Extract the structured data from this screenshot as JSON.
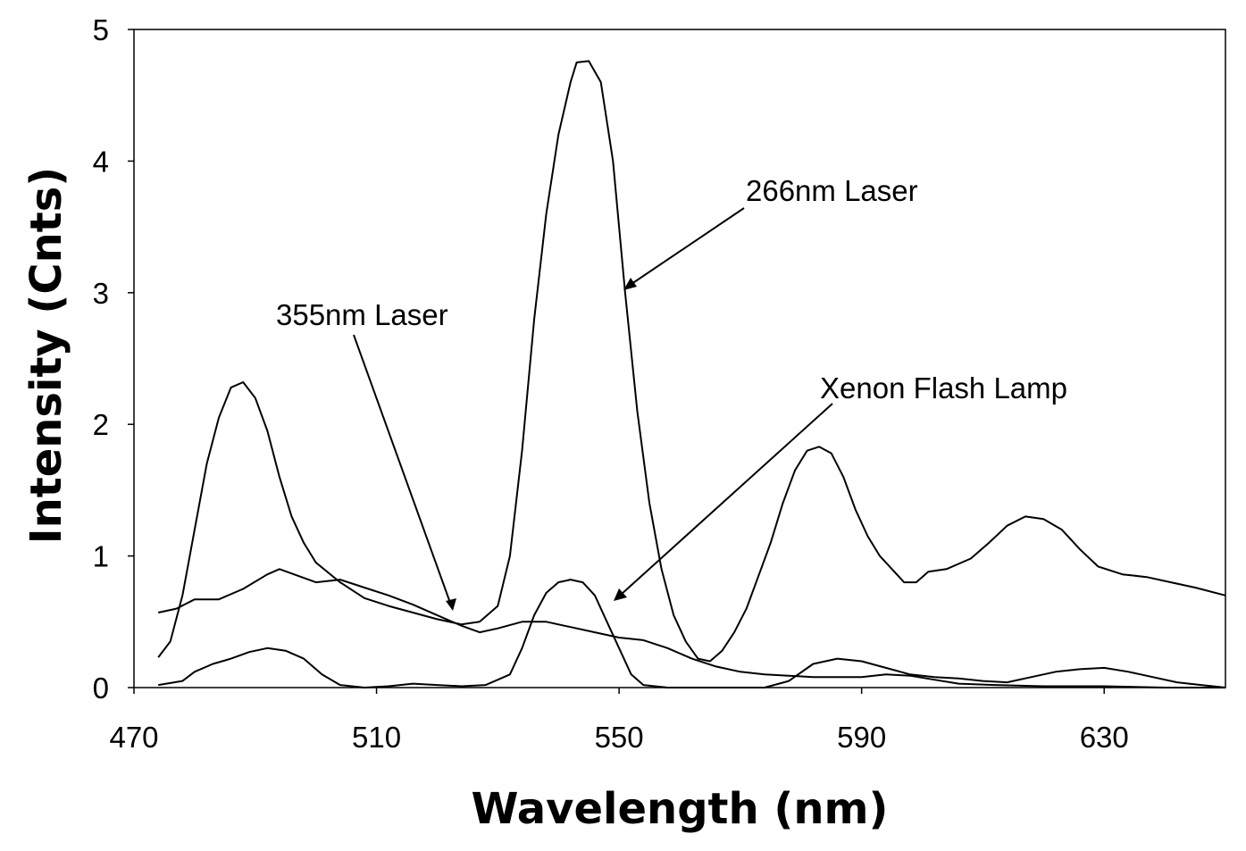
{
  "chart_data": {
    "type": "line",
    "xlabel": "Wavelength (nm)",
    "ylabel": "Intensity (Cnts)",
    "xlim": [
      470,
      650
    ],
    "ylim": [
      0,
      5
    ],
    "x_ticks": [
      470,
      510,
      550,
      590,
      630
    ],
    "y_ticks": [
      0,
      1,
      2,
      3,
      4,
      5
    ],
    "grid": false,
    "series": [
      {
        "id": "s266",
        "points": [
          [
            474,
            0.23
          ],
          [
            476,
            0.35
          ],
          [
            478,
            0.7
          ],
          [
            480,
            1.2
          ],
          [
            482,
            1.7
          ],
          [
            484,
            2.05
          ],
          [
            486,
            2.28
          ],
          [
            488,
            2.32
          ],
          [
            490,
            2.2
          ],
          [
            492,
            1.95
          ],
          [
            494,
            1.6
          ],
          [
            496,
            1.3
          ],
          [
            498,
            1.1
          ],
          [
            500,
            0.95
          ],
          [
            504,
            0.8
          ],
          [
            508,
            0.68
          ],
          [
            512,
            0.62
          ],
          [
            516,
            0.57
          ],
          [
            520,
            0.52
          ],
          [
            524,
            0.48
          ],
          [
            527,
            0.5
          ],
          [
            530,
            0.62
          ],
          [
            532,
            1.0
          ],
          [
            534,
            1.8
          ],
          [
            536,
            2.8
          ],
          [
            538,
            3.6
          ],
          [
            540,
            4.2
          ],
          [
            542,
            4.6
          ],
          [
            543,
            4.75
          ],
          [
            545,
            4.76
          ],
          [
            547,
            4.6
          ],
          [
            549,
            4.0
          ],
          [
            551,
            3.0
          ],
          [
            553,
            2.1
          ],
          [
            555,
            1.4
          ],
          [
            557,
            0.9
          ],
          [
            559,
            0.55
          ],
          [
            561,
            0.35
          ],
          [
            563,
            0.22
          ],
          [
            565,
            0.2
          ],
          [
            567,
            0.28
          ],
          [
            569,
            0.42
          ],
          [
            571,
            0.6
          ],
          [
            573,
            0.85
          ],
          [
            575,
            1.1
          ],
          [
            577,
            1.4
          ],
          [
            579,
            1.65
          ],
          [
            581,
            1.8
          ],
          [
            583,
            1.83
          ],
          [
            585,
            1.78
          ],
          [
            587,
            1.6
          ],
          [
            589,
            1.35
          ],
          [
            591,
            1.15
          ],
          [
            593,
            1.0
          ],
          [
            595,
            0.9
          ],
          [
            597,
            0.8
          ],
          [
            599,
            0.8
          ],
          [
            601,
            0.88
          ],
          [
            604,
            0.9
          ],
          [
            608,
            0.98
          ],
          [
            611,
            1.1
          ],
          [
            614,
            1.23
          ],
          [
            617,
            1.3
          ],
          [
            620,
            1.28
          ],
          [
            623,
            1.2
          ],
          [
            626,
            1.05
          ],
          [
            629,
            0.92
          ],
          [
            633,
            0.86
          ],
          [
            637,
            0.84
          ],
          [
            641,
            0.8
          ],
          [
            645,
            0.76
          ],
          [
            650,
            0.7
          ]
        ]
      },
      {
        "id": "s355",
        "points": [
          [
            474,
            0.57
          ],
          [
            477,
            0.6
          ],
          [
            480,
            0.67
          ],
          [
            484,
            0.67
          ],
          [
            488,
            0.75
          ],
          [
            492,
            0.86
          ],
          [
            494,
            0.9
          ],
          [
            497,
            0.85
          ],
          [
            500,
            0.8
          ],
          [
            504,
            0.82
          ],
          [
            508,
            0.76
          ],
          [
            512,
            0.7
          ],
          [
            516,
            0.63
          ],
          [
            520,
            0.55
          ],
          [
            524,
            0.47
          ],
          [
            527,
            0.42
          ],
          [
            530,
            0.45
          ],
          [
            534,
            0.5
          ],
          [
            538,
            0.5
          ],
          [
            542,
            0.46
          ],
          [
            546,
            0.42
          ],
          [
            550,
            0.38
          ],
          [
            554,
            0.36
          ],
          [
            558,
            0.3
          ],
          [
            562,
            0.22
          ],
          [
            566,
            0.16
          ],
          [
            570,
            0.12
          ],
          [
            574,
            0.1
          ],
          [
            578,
            0.09
          ],
          [
            582,
            0.08
          ],
          [
            586,
            0.08
          ],
          [
            590,
            0.08
          ],
          [
            594,
            0.1
          ],
          [
            598,
            0.09
          ],
          [
            602,
            0.06
          ],
          [
            606,
            0.03
          ],
          [
            612,
            0.02
          ],
          [
            620,
            0.01
          ],
          [
            630,
            0.01
          ],
          [
            640,
            0.0
          ],
          [
            650,
            0.0
          ]
        ]
      },
      {
        "id": "sxe",
        "points": [
          [
            474,
            0.02
          ],
          [
            478,
            0.05
          ],
          [
            480,
            0.12
          ],
          [
            483,
            0.18
          ],
          [
            486,
            0.22
          ],
          [
            489,
            0.27
          ],
          [
            492,
            0.3
          ],
          [
            495,
            0.28
          ],
          [
            498,
            0.22
          ],
          [
            501,
            0.1
          ],
          [
            504,
            0.02
          ],
          [
            508,
            0.0
          ],
          [
            512,
            0.01
          ],
          [
            516,
            0.03
          ],
          [
            520,
            0.02
          ],
          [
            524,
            0.01
          ],
          [
            528,
            0.02
          ],
          [
            532,
            0.1
          ],
          [
            534,
            0.3
          ],
          [
            536,
            0.55
          ],
          [
            538,
            0.72
          ],
          [
            540,
            0.8
          ],
          [
            542,
            0.82
          ],
          [
            544,
            0.8
          ],
          [
            546,
            0.7
          ],
          [
            548,
            0.5
          ],
          [
            550,
            0.3
          ],
          [
            552,
            0.1
          ],
          [
            554,
            0.02
          ],
          [
            558,
            0.0
          ],
          [
            566,
            0.0
          ],
          [
            574,
            0.0
          ],
          [
            578,
            0.05
          ],
          [
            582,
            0.18
          ],
          [
            586,
            0.22
          ],
          [
            590,
            0.2
          ],
          [
            594,
            0.15
          ],
          [
            598,
            0.1
          ],
          [
            602,
            0.08
          ],
          [
            606,
            0.07
          ],
          [
            610,
            0.05
          ],
          [
            614,
            0.04
          ],
          [
            618,
            0.08
          ],
          [
            622,
            0.12
          ],
          [
            626,
            0.14
          ],
          [
            630,
            0.15
          ],
          [
            634,
            0.12
          ],
          [
            638,
            0.08
          ],
          [
            642,
            0.04
          ],
          [
            646,
            0.02
          ],
          [
            650,
            0.0
          ]
        ]
      }
    ],
    "annotations": [
      {
        "text": "266nm Laser",
        "target": [
          551,
          3.0
        ]
      },
      {
        "text": "355nm Laser",
        "target": [
          520,
          0.58
        ]
      },
      {
        "text": "Xenon Flash Lamp",
        "target": [
          549,
          0.65
        ]
      }
    ]
  }
}
